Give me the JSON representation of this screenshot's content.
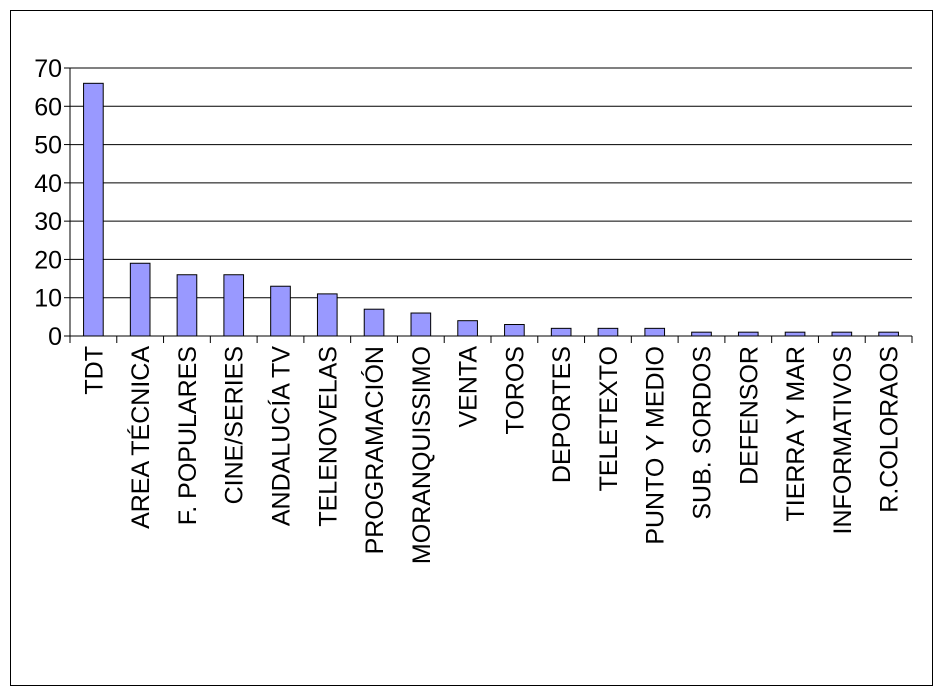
{
  "chart_data": {
    "type": "bar",
    "categories": [
      "TDT",
      "AREA TÉCNICA",
      "F. POPULARES",
      "CINE/SERIES",
      "ANDALUCÍA TV",
      "TELENOVELAS",
      "PROGRAMACIÓN",
      "MORANQUISSIMO",
      "VENTA",
      "TOROS",
      "DEPORTES",
      "TELETEXTO",
      "PUNTO Y MEDIO",
      "SUB. SORDOS",
      "DEFENSOR",
      "TIERRA Y MAR",
      "INFORMATIVOS",
      "R.COLORAOS"
    ],
    "values": [
      66,
      19,
      16,
      16,
      13,
      11,
      7,
      6,
      4,
      3,
      2,
      2,
      2,
      1,
      1,
      1,
      1,
      1
    ],
    "ylim": [
      0,
      70
    ],
    "yticks": [
      "0",
      "10",
      "20",
      "30",
      "40",
      "50",
      "60",
      "70"
    ],
    "grid": true,
    "title": "",
    "xlabel": "",
    "ylabel": "",
    "bar_color": "#9999ff",
    "bar_border": "#000000"
  }
}
